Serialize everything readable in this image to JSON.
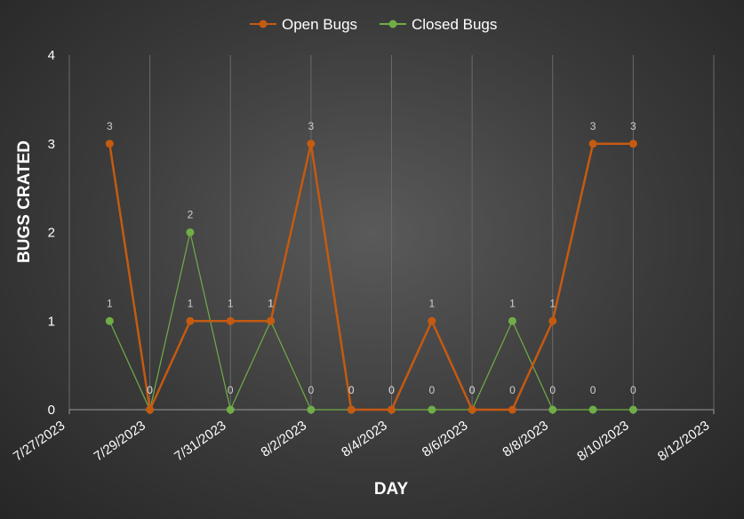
{
  "chart_data": {
    "type": "line",
    "xlabel": "DAY",
    "ylabel": "BUGS CRATED",
    "ylim": [
      0,
      4
    ],
    "yticks": [
      "0",
      "1",
      "2",
      "3",
      "4"
    ],
    "xticks": [
      "7/27/2023",
      "7/29/2023",
      "7/31/2023",
      "8/2/2023",
      "8/4/2023",
      "8/6/2023",
      "8/8/2023",
      "8/10/2023",
      "8/12/2023"
    ],
    "x": [
      "7/28/2023",
      "7/29/2023",
      "7/30/2023",
      "7/31/2023",
      "8/1/2023",
      "8/2/2023",
      "8/3/2023",
      "8/4/2023",
      "8/5/2023",
      "8/6/2023",
      "8/7/2023",
      "8/8/2023",
      "8/9/2023",
      "8/10/2023"
    ],
    "series": [
      {
        "name": "Open Bugs",
        "color": "#c55a11",
        "values": [
          3,
          0,
          1,
          1,
          1,
          3,
          0,
          0,
          1,
          0,
          0,
          1,
          3,
          3
        ],
        "labels": [
          "3",
          "0",
          "1",
          "1",
          "1",
          "3",
          "0",
          "0",
          "1",
          "0",
          "0",
          "1",
          "3",
          "3"
        ]
      },
      {
        "name": "Closed Bugs",
        "color": "#70ad47",
        "values": [
          1,
          0,
          2,
          0,
          1,
          0,
          0,
          0,
          0,
          0,
          1,
          0,
          0,
          0
        ],
        "labels": [
          "1",
          "0",
          "2",
          "0",
          "1",
          "0",
          "0",
          "0",
          "0",
          "0",
          "1",
          "0",
          "0",
          "0"
        ]
      }
    ],
    "legend": "top",
    "grid": "vertical"
  }
}
